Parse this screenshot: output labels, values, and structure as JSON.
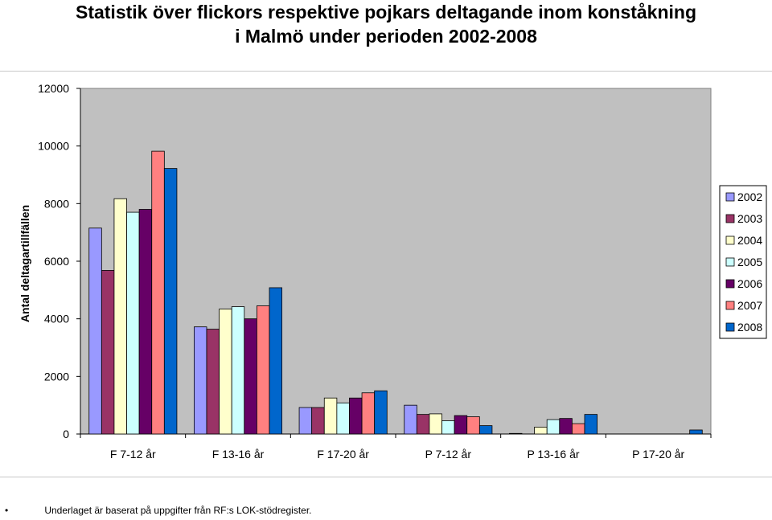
{
  "title_lines": [
    "Statistik över flickors respektive pojkars deltagande inom konståkning",
    "i Malmö under perioden 2002-2008"
  ],
  "footnote": {
    "bullet": "•",
    "text": "Underlaget är baserat på uppgifter från RF:s LOK-stödregister."
  },
  "chart_data": {
    "type": "bar",
    "title": "Statistik över flickors respektive pojkars deltagande inom konståkning i Malmö under perioden 2002-2008",
    "xlabel": "",
    "ylabel": "Antal deltagartillfällen",
    "ylim": [
      0,
      12000
    ],
    "yticks": [
      0,
      2000,
      4000,
      6000,
      8000,
      10000,
      12000
    ],
    "grid": false,
    "legend_position": "right",
    "plot_background": "#c0c0c0",
    "categories": [
      "F 7-12 år",
      "F 13-16 år",
      "F 17-20 år",
      "P 7-12 år",
      "P 13-16 år",
      "P 17-20 år"
    ],
    "series": [
      {
        "name": "2002",
        "color": "#9999ff",
        "values": [
          7150,
          3720,
          920,
          1000,
          20,
          0
        ]
      },
      {
        "name": "2003",
        "color": "#993366",
        "values": [
          5680,
          3640,
          920,
          680,
          0,
          0
        ]
      },
      {
        "name": "2004",
        "color": "#ffffcc",
        "values": [
          8170,
          4340,
          1250,
          700,
          240,
          0
        ]
      },
      {
        "name": "2005",
        "color": "#ccffff",
        "values": [
          7700,
          4420,
          1080,
          460,
          500,
          0
        ]
      },
      {
        "name": "2006",
        "color": "#660066",
        "values": [
          7800,
          4000,
          1250,
          640,
          540,
          0
        ]
      },
      {
        "name": "2007",
        "color": "#ff8080",
        "values": [
          9820,
          4450,
          1430,
          600,
          360,
          0
        ]
      },
      {
        "name": "2008",
        "color": "#0066cc",
        "values": [
          9220,
          5080,
          1500,
          290,
          680,
          140
        ]
      }
    ]
  }
}
